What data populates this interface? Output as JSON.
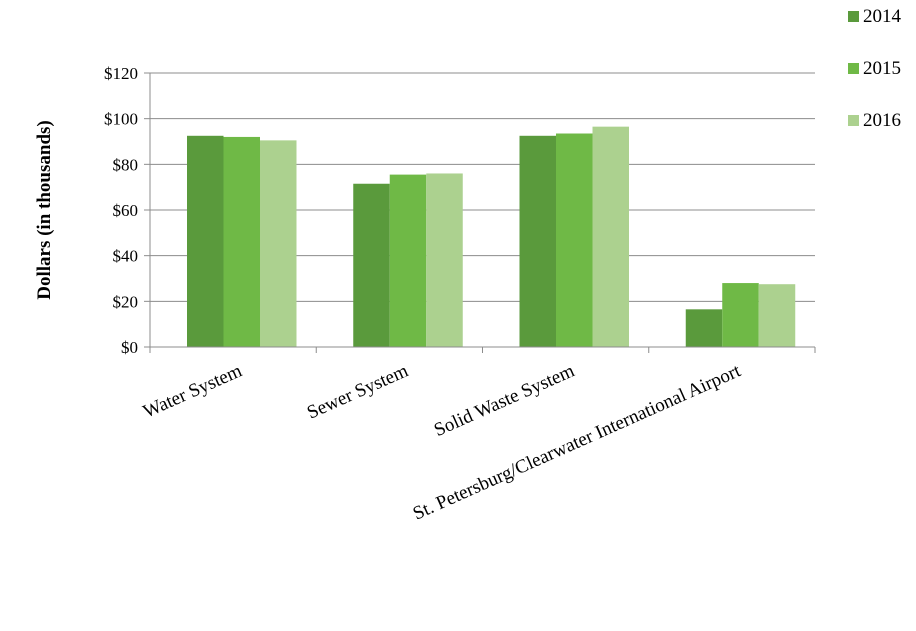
{
  "chart_data": {
    "type": "bar",
    "title": "",
    "xlabel": "",
    "ylabel": "Dollars (in thousands)",
    "categories": [
      "Water System",
      "Sewer System",
      "Solid Waste System",
      "St. Petersburg/Clearwater International Airport"
    ],
    "series": [
      {
        "name": "2014",
        "values": [
          92.5,
          71.5,
          92.5,
          16.5
        ]
      },
      {
        "name": "2015",
        "values": [
          92,
          75.5,
          93.5,
          28
        ]
      },
      {
        "name": "2016",
        "values": [
          90.5,
          76,
          96.5,
          27.5
        ]
      }
    ],
    "ylim": [
      0,
      120
    ],
    "yticks": [
      0,
      20,
      40,
      60,
      80,
      100,
      120
    ],
    "ytick_labels": [
      "$0",
      "$20",
      "$40",
      "$60",
      "$80",
      "$100",
      "$120"
    ],
    "grid": true,
    "legend_position": "top-right",
    "colors": {
      "2014": "#5a9a3c",
      "2015": "#6fb946",
      "2016": "#acd18f"
    }
  }
}
